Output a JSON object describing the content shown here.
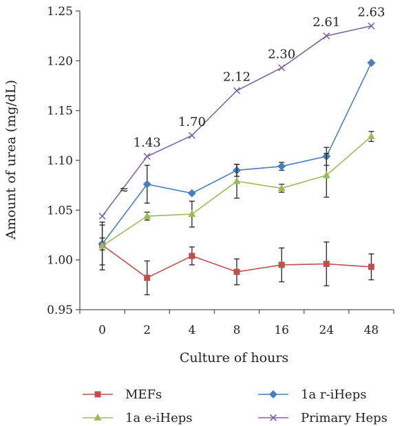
{
  "chart_data": {
    "type": "line",
    "title": "",
    "xlabel": "Culture of hours",
    "ylabel": "Amount of urea (mg/dL)",
    "categories": [
      "0",
      "2",
      "4",
      "8",
      "16",
      "24",
      "48"
    ],
    "ylim": [
      0.95,
      1.25
    ],
    "yticks": [
      "0.95",
      "1.00",
      "1.05",
      "1.10",
      "1.15",
      "1.20",
      "1.25"
    ],
    "grid": false,
    "legend_position": "bottom",
    "series": [
      {
        "name": "MEFs",
        "color": "#c0504d",
        "marker": "square",
        "values": [
          1.015,
          0.982,
          1.004,
          0.988,
          0.995,
          0.996,
          0.993
        ],
        "errors": [
          0.02,
          0.017,
          0.009,
          0.013,
          0.017,
          0.022,
          0.013
        ]
      },
      {
        "name": "1a r-iHeps",
        "color": "#4a7ebb",
        "marker": "diamond",
        "values": [
          1.016,
          1.076,
          1.067,
          1.09,
          1.094,
          1.104,
          1.198
        ],
        "errors": [
          0.006,
          0.019,
          0,
          0.006,
          0.004,
          0.009,
          0
        ]
      },
      {
        "name": "1a e-iHeps",
        "color": "#9bbb59",
        "marker": "triangle",
        "values": [
          1.014,
          1.044,
          1.046,
          1.079,
          1.072,
          1.085,
          1.124
        ],
        "errors": [
          0.024,
          0.004,
          0.013,
          0.017,
          0.004,
          0.022,
          0.005
        ]
      },
      {
        "name": "Primary Heps",
        "color": "#8064a2",
        "marker": "x",
        "values": [
          1.044,
          1.104,
          1.125,
          1.17,
          1.193,
          1.225,
          1.235
        ],
        "errors": [
          0,
          0,
          0,
          0,
          0,
          0,
          0
        ],
        "labels": [
          "",
          "1.43",
          "1.70",
          "2.12",
          "2.30",
          "2.61",
          "2.63"
        ]
      }
    ],
    "axis_break_symbol": "≈"
  }
}
